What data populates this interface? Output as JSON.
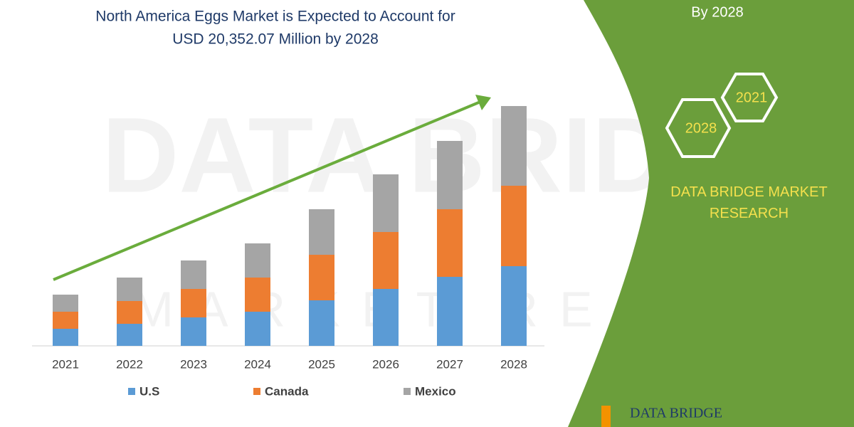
{
  "chart_data": {
    "type": "stacked-bar",
    "title": [
      "North America Eggs Market is Expected to Account for",
      "USD 20,352.07 Million by 2028"
    ],
    "categories": [
      "2021",
      "2022",
      "2023",
      "2024",
      "2025",
      "2026",
      "2027",
      "2028"
    ],
    "series": [
      {
        "name": "U.S",
        "color": "#5b9bd5",
        "values": [
          24,
          31,
          40,
          48,
          64,
          80,
          97,
          112
        ]
      },
      {
        "name": "Canada",
        "color": "#ed7d31",
        "values": [
          24,
          32,
          40,
          48,
          64,
          80,
          95,
          113
        ]
      },
      {
        "name": "Mexico",
        "color": "#a5a5a5",
        "values": [
          24,
          33,
          40,
          48,
          64,
          81,
          96,
          112
        ]
      }
    ]
  },
  "watermark": {
    "top": "DATA BRIDGE",
    "bottom": "MARKET RESEARCH"
  },
  "side_panel": {
    "caption": "By 2028",
    "badges": [
      "2021",
      "2028"
    ],
    "brand": "DATA BRIDGE MARKET RESEARCH"
  },
  "footer_logo": "DATA BRIDGE"
}
